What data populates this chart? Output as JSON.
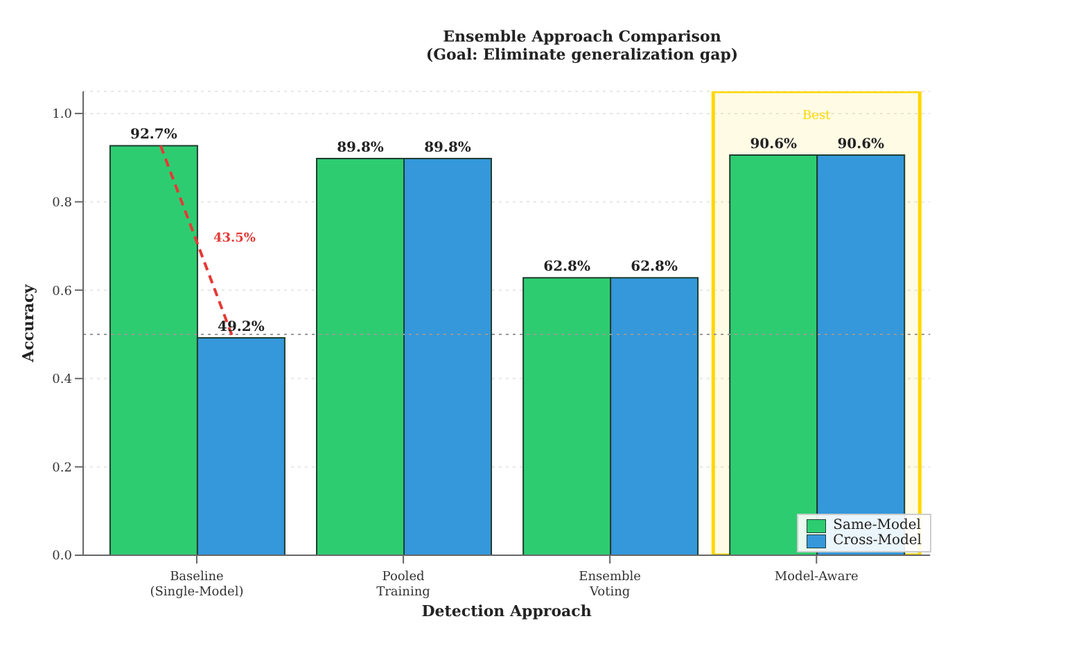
{
  "chart_data": {
    "type": "bar",
    "title": "Ensemble Approach Comparison\n(Goal: Eliminate generalization gap)",
    "xlabel": "Detection Approach",
    "ylabel": "Accuracy",
    "categories": [
      "Baseline\n(Single-Model)",
      "Pooled\nTraining",
      "Ensemble\nVoting",
      "Model-Aware"
    ],
    "series": [
      {
        "name": "Same-Model",
        "color": "#2ecc71",
        "values": [
          0.927,
          0.898,
          0.628,
          0.906
        ],
        "value_labels": [
          "92.7%",
          "89.8%",
          "62.8%",
          "90.6%"
        ]
      },
      {
        "name": "Cross-Model",
        "color": "#3498db",
        "values": [
          0.492,
          0.898,
          0.628,
          0.906
        ],
        "value_labels": [
          "49.2%",
          "89.8%",
          "62.8%",
          "90.6%"
        ]
      }
    ],
    "ylim": [
      0,
      1.05
    ],
    "yticks": [
      {
        "value": 0,
        "label": "0.0"
      },
      0.2,
      0.4,
      0.6,
      0.8,
      {
        "value": 1,
        "label": "1.0"
      }
    ],
    "grid": "y",
    "legend": "bottom right",
    "ref_lines": [
      {
        "axis": "y",
        "value": 0.5,
        "color": "#999999",
        "line_style": "dotted"
      }
    ],
    "bands": [
      {
        "axis": "x",
        "from": "Model-Aware",
        "to": "Model-Aware",
        "label": "Best",
        "color": "#ffd700"
      }
    ],
    "annotations": [
      {
        "text": "43.5%",
        "x": "Baseline\n(Single-Model)",
        "y": 0.71
      }
    ]
  }
}
